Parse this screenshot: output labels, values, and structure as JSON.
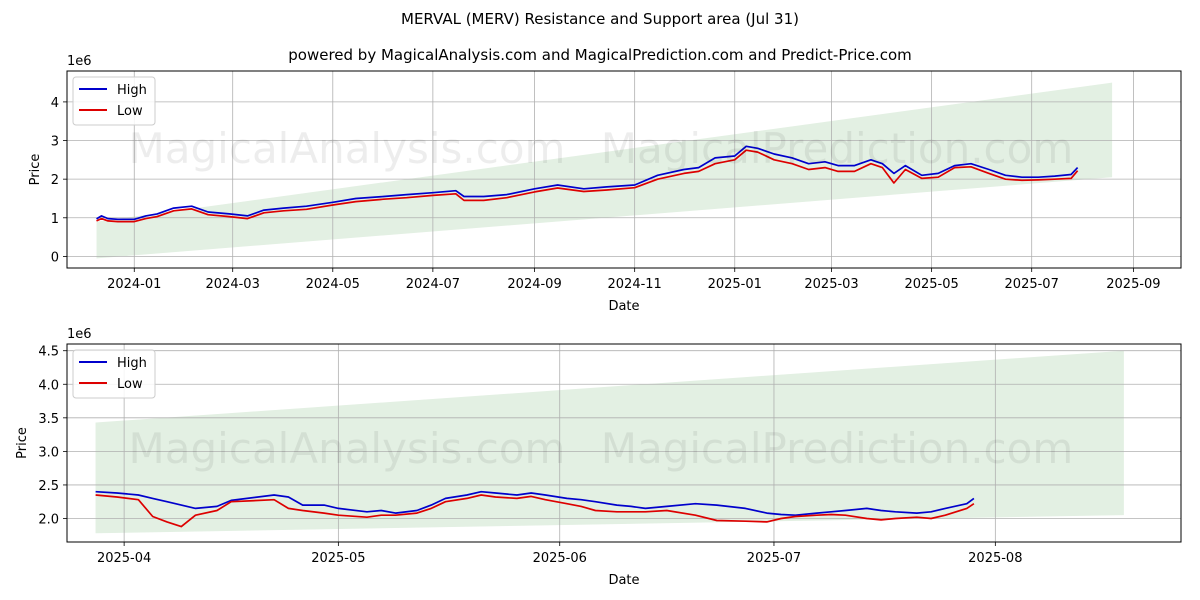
{
  "title": "MERVAL (MERV) Resistance and Support area (Jul 31)",
  "subtitle": "powered by MagicalAnalysis.com and MagicalPrediction.com and Predict-Price.com",
  "watermarks": [
    "MagicalAnalysis.com",
    "MagicalPrediction.com"
  ],
  "colors": {
    "high": "#0000cc",
    "low": "#dd0000",
    "band": "#e3f0e3",
    "grid": "#b0b0b0"
  },
  "chart_data": [
    {
      "type": "line",
      "xlabel": "Date",
      "ylabel": "Price",
      "y_offset_label": "1e6",
      "xlim": [
        "2023-11-21",
        "2025-09-30"
      ],
      "ylim": [
        -0.3,
        4.8
      ],
      "x_ticks": [
        "2024-01",
        "2024-03",
        "2024-05",
        "2024-07",
        "2024-09",
        "2024-11",
        "2025-01",
        "2025-03",
        "2025-05",
        "2025-07",
        "2025-09"
      ],
      "y_ticks": [
        0,
        1,
        2,
        3,
        4
      ],
      "grid": true,
      "legend": "top-left",
      "band": {
        "x": [
          "2023-12-09",
          "2025-08-19"
        ],
        "lower": [
          -0.05,
          2.05
        ],
        "upper": [
          0.9,
          4.5
        ]
      },
      "series": [
        {
          "name": "High",
          "x": [
            "2023-12-09",
            "2023-12-12",
            "2023-12-16",
            "2023-12-22",
            "2024-01-01",
            "2024-01-08",
            "2024-01-15",
            "2024-01-25",
            "2024-02-05",
            "2024-02-15",
            "2024-02-28",
            "2024-03-10",
            "2024-03-20",
            "2024-04-01",
            "2024-04-15",
            "2024-05-01",
            "2024-05-15",
            "2024-06-01",
            "2024-06-15",
            "2024-07-01",
            "2024-07-15",
            "2024-07-20",
            "2024-08-01",
            "2024-08-15",
            "2024-09-01",
            "2024-09-15",
            "2024-10-01",
            "2024-10-15",
            "2024-11-01",
            "2024-11-15",
            "2024-12-01",
            "2024-12-10",
            "2024-12-20",
            "2025-01-01",
            "2025-01-08",
            "2025-01-15",
            "2025-01-25",
            "2025-02-05",
            "2025-02-15",
            "2025-02-25",
            "2025-03-05",
            "2025-03-15",
            "2025-03-25",
            "2025-04-01",
            "2025-04-08",
            "2025-04-15",
            "2025-04-25",
            "2025-05-05",
            "2025-05-15",
            "2025-05-25",
            "2025-06-05",
            "2025-06-15",
            "2025-06-25",
            "2025-07-05",
            "2025-07-15",
            "2025-07-25",
            "2025-07-29"
          ],
          "values": [
            0.97,
            1.05,
            0.98,
            0.96,
            0.96,
            1.05,
            1.1,
            1.25,
            1.3,
            1.15,
            1.1,
            1.05,
            1.2,
            1.25,
            1.3,
            1.4,
            1.5,
            1.55,
            1.6,
            1.65,
            1.7,
            1.55,
            1.55,
            1.6,
            1.75,
            1.85,
            1.75,
            1.8,
            1.85,
            2.1,
            2.25,
            2.3,
            2.55,
            2.6,
            2.85,
            2.8,
            2.65,
            2.55,
            2.4,
            2.45,
            2.35,
            2.35,
            2.5,
            2.4,
            2.15,
            2.35,
            2.1,
            2.15,
            2.35,
            2.4,
            2.25,
            2.1,
            2.05,
            2.05,
            2.08,
            2.12,
            2.3
          ]
        },
        {
          "name": "Low",
          "x": [
            "2023-12-09",
            "2023-12-12",
            "2023-12-16",
            "2023-12-22",
            "2024-01-01",
            "2024-01-08",
            "2024-01-15",
            "2024-01-25",
            "2024-02-05",
            "2024-02-15",
            "2024-02-28",
            "2024-03-10",
            "2024-03-20",
            "2024-04-01",
            "2024-04-15",
            "2024-05-01",
            "2024-05-15",
            "2024-06-01",
            "2024-06-15",
            "2024-07-01",
            "2024-07-15",
            "2024-07-20",
            "2024-08-01",
            "2024-08-15",
            "2024-09-01",
            "2024-09-15",
            "2024-10-01",
            "2024-10-15",
            "2024-11-01",
            "2024-11-15",
            "2024-12-01",
            "2024-12-10",
            "2024-12-20",
            "2025-01-01",
            "2025-01-08",
            "2025-01-15",
            "2025-01-25",
            "2025-02-05",
            "2025-02-15",
            "2025-02-25",
            "2025-03-05",
            "2025-03-15",
            "2025-03-25",
            "2025-04-01",
            "2025-04-08",
            "2025-04-15",
            "2025-04-25",
            "2025-05-05",
            "2025-05-15",
            "2025-05-25",
            "2025-06-05",
            "2025-06-15",
            "2025-06-25",
            "2025-07-05",
            "2025-07-15",
            "2025-07-25",
            "2025-07-29"
          ],
          "values": [
            0.92,
            0.98,
            0.92,
            0.9,
            0.9,
            0.98,
            1.03,
            1.18,
            1.23,
            1.08,
            1.03,
            0.98,
            1.13,
            1.18,
            1.22,
            1.33,
            1.42,
            1.48,
            1.52,
            1.58,
            1.62,
            1.45,
            1.45,
            1.52,
            1.67,
            1.77,
            1.68,
            1.72,
            1.78,
            2.0,
            2.15,
            2.2,
            2.4,
            2.5,
            2.75,
            2.7,
            2.5,
            2.4,
            2.25,
            2.3,
            2.2,
            2.2,
            2.4,
            2.3,
            1.9,
            2.25,
            2.02,
            2.05,
            2.3,
            2.32,
            2.15,
            2.0,
            1.97,
            1.98,
            2.0,
            2.02,
            2.22
          ]
        }
      ]
    },
    {
      "type": "line",
      "xlabel": "Date",
      "ylabel": "Price",
      "y_offset_label": "1e6",
      "xlim": [
        "2025-03-24",
        "2025-08-27"
      ],
      "ylim": [
        1.65,
        4.6
      ],
      "x_ticks": [
        "2025-04",
        "2025-05",
        "2025-06",
        "2025-07",
        "2025-08"
      ],
      "y_ticks": [
        2.0,
        2.5,
        3.0,
        3.5,
        4.0,
        4.5
      ],
      "grid": true,
      "legend": "top-left",
      "band": {
        "x": [
          "2025-03-28",
          "2025-08-19"
        ],
        "lower": [
          1.78,
          2.05
        ],
        "upper": [
          3.43,
          4.5
        ]
      },
      "series": [
        {
          "name": "High",
          "x": [
            "2025-03-28",
            "2025-03-31",
            "2025-04-03",
            "2025-04-05",
            "2025-04-07",
            "2025-04-09",
            "2025-04-11",
            "2025-04-14",
            "2025-04-16",
            "2025-04-22",
            "2025-04-24",
            "2025-04-26",
            "2025-04-29",
            "2025-05-01",
            "2025-05-05",
            "2025-05-07",
            "2025-05-09",
            "2025-05-12",
            "2025-05-14",
            "2025-05-16",
            "2025-05-19",
            "2025-05-21",
            "2025-05-23",
            "2025-05-26",
            "2025-05-28",
            "2025-05-30",
            "2025-06-02",
            "2025-06-04",
            "2025-06-06",
            "2025-06-09",
            "2025-06-11",
            "2025-06-13",
            "2025-06-16",
            "2025-06-20",
            "2025-06-23",
            "2025-06-27",
            "2025-06-30",
            "2025-07-02",
            "2025-07-04",
            "2025-07-07",
            "2025-07-09",
            "2025-07-11",
            "2025-07-14",
            "2025-07-16",
            "2025-07-18",
            "2025-07-21",
            "2025-07-23",
            "2025-07-25",
            "2025-07-28",
            "2025-07-29"
          ],
          "values": [
            2.4,
            2.38,
            2.35,
            2.3,
            2.25,
            2.2,
            2.15,
            2.18,
            2.27,
            2.35,
            2.32,
            2.2,
            2.2,
            2.15,
            2.1,
            2.12,
            2.08,
            2.12,
            2.2,
            2.3,
            2.35,
            2.4,
            2.38,
            2.35,
            2.38,
            2.35,
            2.3,
            2.28,
            2.25,
            2.2,
            2.18,
            2.15,
            2.18,
            2.22,
            2.2,
            2.15,
            2.08,
            2.06,
            2.05,
            2.08,
            2.1,
            2.12,
            2.15,
            2.12,
            2.1,
            2.08,
            2.1,
            2.15,
            2.22,
            2.3
          ]
        },
        {
          "name": "Low",
          "x": [
            "2025-03-28",
            "2025-03-31",
            "2025-04-03",
            "2025-04-05",
            "2025-04-07",
            "2025-04-09",
            "2025-04-11",
            "2025-04-14",
            "2025-04-16",
            "2025-04-22",
            "2025-04-24",
            "2025-04-26",
            "2025-04-29",
            "2025-05-01",
            "2025-05-05",
            "2025-05-07",
            "2025-05-09",
            "2025-05-12",
            "2025-05-14",
            "2025-05-16",
            "2025-05-19",
            "2025-05-21",
            "2025-05-23",
            "2025-05-26",
            "2025-05-28",
            "2025-05-30",
            "2025-06-02",
            "2025-06-04",
            "2025-06-06",
            "2025-06-09",
            "2025-06-11",
            "2025-06-13",
            "2025-06-16",
            "2025-06-20",
            "2025-06-23",
            "2025-06-27",
            "2025-06-30",
            "2025-07-02",
            "2025-07-04",
            "2025-07-07",
            "2025-07-09",
            "2025-07-11",
            "2025-07-14",
            "2025-07-16",
            "2025-07-18",
            "2025-07-21",
            "2025-07-23",
            "2025-07-25",
            "2025-07-28",
            "2025-07-29"
          ],
          "values": [
            2.35,
            2.32,
            2.28,
            2.03,
            1.95,
            1.88,
            2.05,
            2.12,
            2.25,
            2.28,
            2.15,
            2.12,
            2.08,
            2.05,
            2.02,
            2.05,
            2.05,
            2.08,
            2.15,
            2.25,
            2.3,
            2.35,
            2.32,
            2.3,
            2.33,
            2.28,
            2.22,
            2.18,
            2.12,
            2.1,
            2.1,
            2.1,
            2.12,
            2.05,
            1.97,
            1.96,
            1.95,
            2.0,
            2.03,
            2.05,
            2.06,
            2.05,
            2.0,
            1.98,
            2.0,
            2.02,
            2.0,
            2.05,
            2.15,
            2.22
          ]
        }
      ]
    }
  ]
}
